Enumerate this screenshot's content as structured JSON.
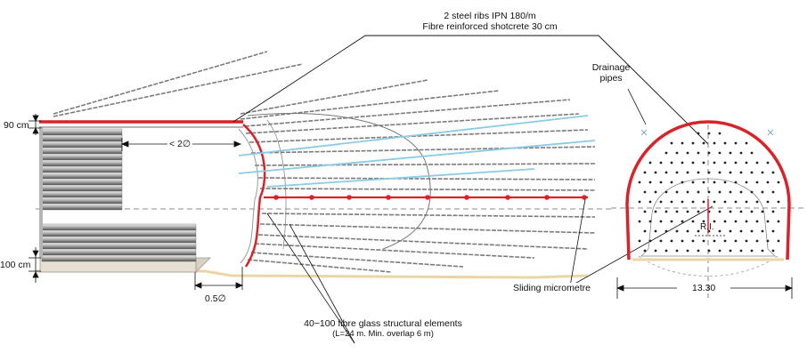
{
  "labels": {
    "ribs_line1": "2 steel ribs IPN 180/m",
    "ribs_line2": "Fibre reinforced shotcrete 30 cm",
    "drainage_line1": "Drainage",
    "drainage_line2": "pipes",
    "top_thickness": "90 cm",
    "bottom_thickness": "100 cm",
    "advance_length": "< 2∅",
    "face_offset": "0.5∅",
    "sliding_micrometre": "Sliding micrometre",
    "width_dim": "13.30",
    "radius": "R.I.",
    "glass_line1": "40−100 fibre glass structural elements",
    "glass_line2": "(L=24 m. Min. overlap 6 m)"
  },
  "colors": {
    "lining_red": "#d8232a",
    "drainage_blue": "#8ccbe6",
    "element_grey": "#7b7b7b",
    "core_yellow": "#f3ead2"
  }
}
